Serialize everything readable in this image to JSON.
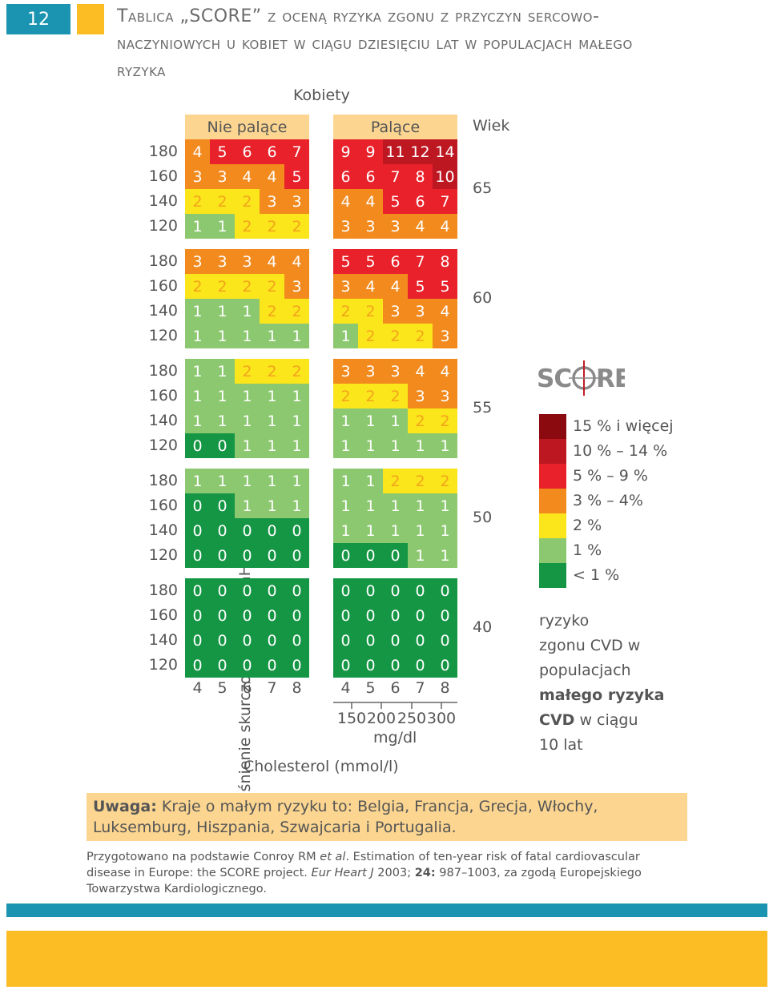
{
  "page_number": "12",
  "title": "Tablica „SCORE” z oceną ryzyka zgonu z przyczyn sercowo-naczyniowych u kobiet w ciągu dziesięciu lat w populacjach małego ryzyka",
  "gender": "Kobiety",
  "header_non_smoking": "Nie palące",
  "header_smoking": "Palące",
  "header_age": "Wiek",
  "y_axis_label": "Ciśnienie skurczowe krwi (mmHg)",
  "x_axis_label": "Cholesterol (mmol/l)",
  "bp_values": [
    "180",
    "160",
    "140",
    "120"
  ],
  "chol_mmol": [
    "4",
    "5",
    "6",
    "7",
    "8"
  ],
  "chol_mgdl": [
    "150",
    "200",
    "250",
    "300"
  ],
  "chol_mgdl_unit": "mg/dl",
  "colors": {
    "risk_15_plus": "#8b0a10",
    "risk_10_14": "#bd1722",
    "risk_5_9": "#e8212a",
    "risk_3_4": "#f28a1e",
    "risk_2": "#fbe51b",
    "risk_1": "#8cc870",
    "risk_lt1": "#159644",
    "accent_blue": "#1a94b0",
    "accent_yellow": "#fcbd24",
    "header_bg": "#fcd691"
  },
  "chart_data": {
    "type": "table",
    "groups": [
      {
        "age": "65",
        "non_smoking": [
          [
            4,
            5,
            6,
            6,
            7
          ],
          [
            3,
            3,
            4,
            4,
            5
          ],
          [
            2,
            2,
            2,
            3,
            3
          ],
          [
            1,
            1,
            2,
            2,
            2
          ]
        ],
        "smoking": [
          [
            9,
            9,
            11,
            12,
            14
          ],
          [
            6,
            6,
            7,
            8,
            10
          ],
          [
            4,
            4,
            5,
            6,
            7
          ],
          [
            3,
            3,
            3,
            4,
            4
          ]
        ]
      },
      {
        "age": "60",
        "non_smoking": [
          [
            3,
            3,
            3,
            4,
            4
          ],
          [
            2,
            2,
            2,
            2,
            3
          ],
          [
            1,
            1,
            1,
            2,
            2
          ],
          [
            1,
            1,
            1,
            1,
            1
          ]
        ],
        "smoking": [
          [
            5,
            5,
            6,
            7,
            8
          ],
          [
            3,
            4,
            4,
            5,
            5
          ],
          [
            2,
            2,
            3,
            3,
            4
          ],
          [
            1,
            2,
            2,
            2,
            3
          ]
        ]
      },
      {
        "age": "55",
        "non_smoking": [
          [
            1,
            1,
            2,
            2,
            2
          ],
          [
            1,
            1,
            1,
            1,
            1
          ],
          [
            1,
            1,
            1,
            1,
            1
          ],
          [
            0,
            0,
            1,
            1,
            1
          ]
        ],
        "smoking": [
          [
            3,
            3,
            3,
            4,
            4
          ],
          [
            2,
            2,
            2,
            3,
            3
          ],
          [
            1,
            1,
            1,
            2,
            2
          ],
          [
            1,
            1,
            1,
            1,
            1
          ]
        ]
      },
      {
        "age": "50",
        "non_smoking": [
          [
            1,
            1,
            1,
            1,
            1
          ],
          [
            0,
            0,
            1,
            1,
            1
          ],
          [
            0,
            0,
            0,
            0,
            0
          ],
          [
            0,
            0,
            0,
            0,
            0
          ]
        ],
        "smoking": [
          [
            1,
            1,
            2,
            2,
            2
          ],
          [
            1,
            1,
            1,
            1,
            1
          ],
          [
            1,
            1,
            1,
            1,
            1
          ],
          [
            0,
            0,
            0,
            1,
            1
          ]
        ]
      },
      {
        "age": "40",
        "non_smoking": [
          [
            0,
            0,
            0,
            0,
            0
          ],
          [
            0,
            0,
            0,
            0,
            0
          ],
          [
            0,
            0,
            0,
            0,
            0
          ],
          [
            0,
            0,
            0,
            0,
            0
          ]
        ],
        "smoking": [
          [
            0,
            0,
            0,
            0,
            0
          ],
          [
            0,
            0,
            0,
            0,
            0
          ],
          [
            0,
            0,
            0,
            0,
            0
          ],
          [
            0,
            0,
            0,
            0,
            0
          ]
        ]
      }
    ]
  },
  "logo_text": "SCORE",
  "legend": [
    {
      "label": "15 % i więcej",
      "color": "#8b0a10"
    },
    {
      "label": "10 % – 14 %",
      "color": "#bd1722"
    },
    {
      "label": "5 % – 9 %",
      "color": "#e8212a"
    },
    {
      "label": "3 % – 4%",
      "color": "#f28a1e"
    },
    {
      "label": "2 %",
      "color": "#fbe51b"
    },
    {
      "label": "1 %",
      "color": "#8cc870"
    },
    {
      "label": "< 1 %",
      "color": "#159644"
    }
  ],
  "legend_desc": {
    "line1": "ryzyko",
    "line2": "zgonu CVD w",
    "line3": "populacjach",
    "line4": "małego ryzyka",
    "line5_bold": "CVD",
    "line5_rest": " w ciągu",
    "line6": "10  lat"
  },
  "note": {
    "label": "Uwaga:",
    "text": " Kraje o małym ryzyku to: Belgia, Francja, Grecja, Włochy, Luksemburg, Hiszpania, Szwajcaria i Portugalia."
  },
  "source": {
    "part1": "Przygotowano na podstawie Conroy RM ",
    "et_al": "et al",
    "part2": ". Estimation of ten-year risk of fatal cardiovascular disease in Europe: the SCORE project. ",
    "journal": "Eur Heart J",
    "part3": " 2003; ",
    "volume": "24:",
    "part4": " 987–1003, za zgodą Europejskiego Towarzystwa Kardiologicznego."
  }
}
